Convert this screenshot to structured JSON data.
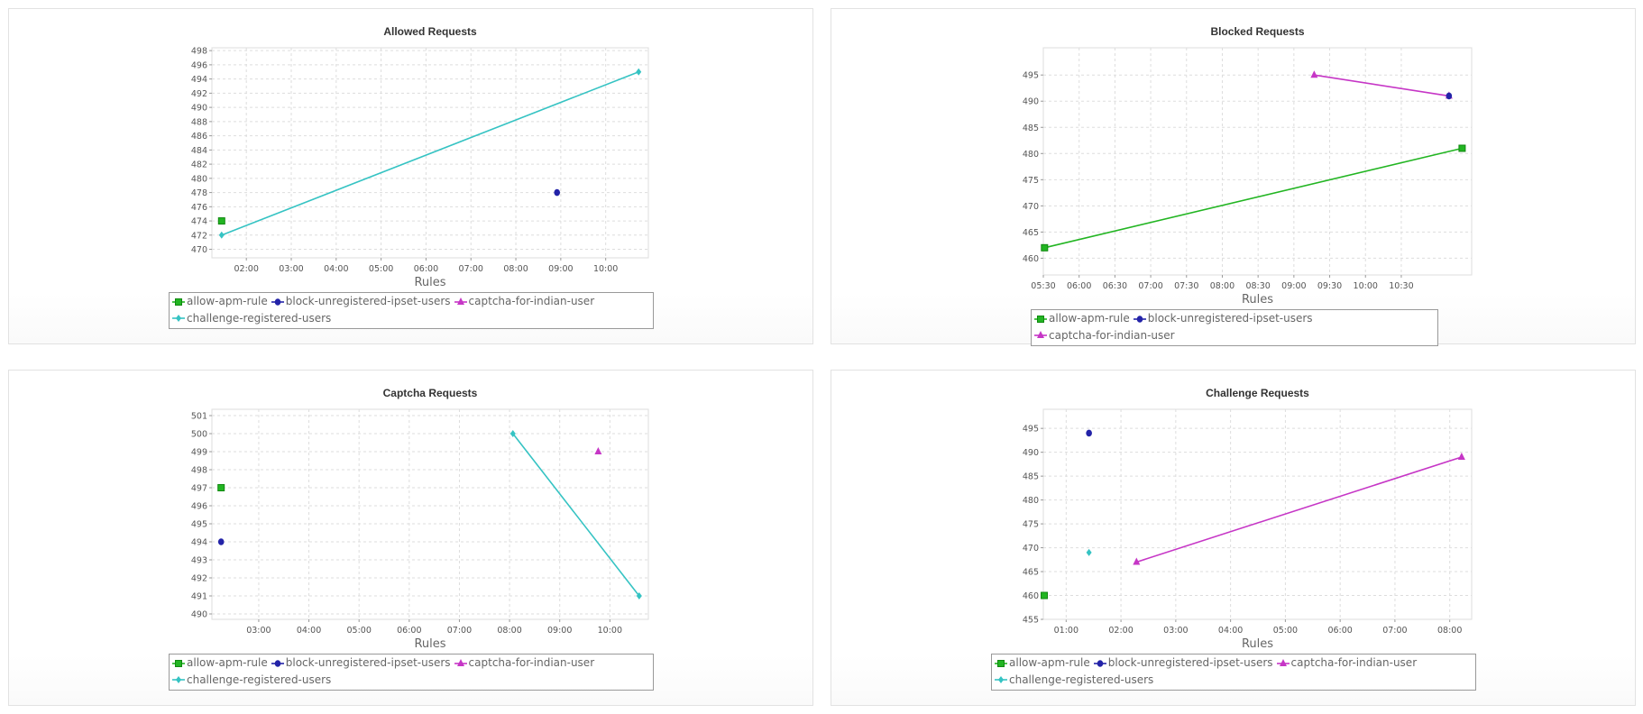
{
  "colors": {
    "allow-apm-rule": "#22b522",
    "block-unregistered-ipset-users": "#2323a8",
    "captcha-for-indian-user": "#c636c6",
    "challenge-registered-users": "#35c3c3"
  },
  "chart_data": [
    {
      "type": "line",
      "title": "Allowed Requests",
      "xlabel": "Rules",
      "ylabel": "",
      "xlim": [
        "01:14",
        "10:57"
      ],
      "ylim": [
        468.8,
        498.4
      ],
      "xticks": [
        "02:00",
        "03:00",
        "04:00",
        "05:00",
        "06:00",
        "07:00",
        "08:00",
        "09:00",
        "10:00"
      ],
      "yticks": [
        470,
        472,
        474,
        476,
        478,
        480,
        482,
        484,
        486,
        488,
        490,
        492,
        494,
        496,
        498
      ],
      "grid": true,
      "legend": "bottom",
      "legend_entries": [
        "allow-apm-rule",
        "block-unregistered-ipset-users",
        "captcha-for-indian-user",
        "challenge-registered-users"
      ],
      "series": [
        {
          "name": "allow-apm-rule",
          "marker": "square",
          "points": [
            [
              "01:27",
              474
            ]
          ]
        },
        {
          "name": "block-unregistered-ipset-users",
          "marker": "circle",
          "points": [
            [
              "08:55",
              478
            ]
          ]
        },
        {
          "name": "captcha-for-indian-user",
          "marker": "triangle",
          "points": []
        },
        {
          "name": "challenge-registered-users",
          "marker": "diamond",
          "points": [
            [
              "01:27",
              472
            ],
            [
              "10:44",
              495
            ]
          ]
        }
      ]
    },
    {
      "type": "line",
      "title": "Blocked Requests",
      "xlabel": "Rules",
      "ylabel": "",
      "xlim": [
        "05:30",
        "11:29"
      ],
      "ylim": [
        456.8,
        500.2
      ],
      "xticks": [
        "05:30",
        "06:00",
        "06:30",
        "07:00",
        "07:30",
        "08:00",
        "08:30",
        "09:00",
        "09:30",
        "10:00",
        "10:30"
      ],
      "yticks": [
        460,
        465,
        470,
        475,
        480,
        485,
        490,
        495
      ],
      "grid": true,
      "legend": "bottom",
      "legend_entries": [
        "allow-apm-rule",
        "block-unregistered-ipset-users",
        "captcha-for-indian-user"
      ],
      "series": [
        {
          "name": "allow-apm-rule",
          "marker": "square",
          "points": [
            [
              "05:31",
              462
            ],
            [
              "11:21",
              481
            ]
          ]
        },
        {
          "name": "captcha-for-indian-user",
          "marker": "triangle",
          "points": [
            [
              "09:17",
              495
            ],
            [
              "11:10",
              491
            ]
          ]
        },
        {
          "name": "block-unregistered-ipset-users",
          "marker": "circle",
          "points": [
            [
              "11:10",
              491
            ]
          ]
        }
      ]
    },
    {
      "type": "line",
      "title": "Captcha Requests",
      "xlabel": "Rules",
      "ylabel": "",
      "xlim": [
        "02:04",
        "10:46"
      ],
      "ylim": [
        489.7,
        501.35
      ],
      "xticks": [
        "03:00",
        "04:00",
        "05:00",
        "06:00",
        "07:00",
        "08:00",
        "09:00",
        "10:00"
      ],
      "yticks": [
        490,
        491,
        492,
        493,
        494,
        495,
        496,
        497,
        498,
        499,
        500,
        501
      ],
      "grid": true,
      "legend": "bottom",
      "legend_entries": [
        "allow-apm-rule",
        "block-unregistered-ipset-users",
        "captcha-for-indian-user",
        "challenge-registered-users"
      ],
      "series": [
        {
          "name": "allow-apm-rule",
          "marker": "square",
          "points": [
            [
              "02:15",
              497
            ]
          ]
        },
        {
          "name": "block-unregistered-ipset-users",
          "marker": "circle",
          "points": [
            [
              "02:15",
              494
            ]
          ]
        },
        {
          "name": "captcha-for-indian-user",
          "marker": "triangle",
          "points": [
            [
              "09:46",
              499
            ]
          ]
        },
        {
          "name": "challenge-registered-users",
          "marker": "diamond",
          "points": [
            [
              "08:04",
              500
            ],
            [
              "10:35",
              491
            ]
          ]
        }
      ]
    },
    {
      "type": "line",
      "title": "Challenge Requests",
      "xlabel": "Rules",
      "ylabel": "",
      "xlim": [
        "00:35",
        "08:24"
      ],
      "ylim": [
        455,
        499
      ],
      "xticks": [
        "01:00",
        "02:00",
        "03:00",
        "04:00",
        "05:00",
        "06:00",
        "07:00",
        "08:00"
      ],
      "yticks": [
        455,
        460,
        465,
        470,
        475,
        480,
        485,
        490,
        495
      ],
      "grid": true,
      "legend": "bottom",
      "legend_entries": [
        "allow-apm-rule",
        "block-unregistered-ipset-users",
        "captcha-for-indian-user",
        "challenge-registered-users"
      ],
      "series": [
        {
          "name": "allow-apm-rule",
          "marker": "square",
          "points": [
            [
              "00:36",
              460
            ]
          ]
        },
        {
          "name": "block-unregistered-ipset-users",
          "marker": "circle",
          "points": [
            [
              "01:25",
              494
            ]
          ]
        },
        {
          "name": "captcha-for-indian-user",
          "marker": "triangle",
          "points": [
            [
              "02:17",
              467
            ],
            [
              "08:13",
              489
            ]
          ]
        },
        {
          "name": "challenge-registered-users",
          "marker": "diamond",
          "points": [
            [
              "01:25",
              469
            ]
          ]
        }
      ]
    }
  ]
}
